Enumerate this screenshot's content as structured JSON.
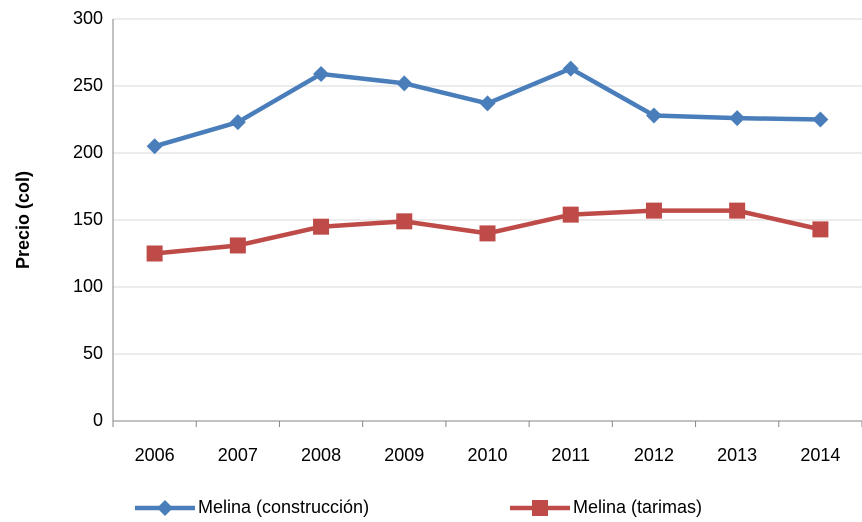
{
  "chart_data": {
    "type": "line",
    "y_label": "Precio (col)",
    "categories": [
      "2006",
      "2007",
      "2008",
      "2009",
      "2010",
      "2011",
      "2012",
      "2013",
      "2014"
    ],
    "series": [
      {
        "name": "Melina (construcción)",
        "color": "#4a7ebb",
        "marker": "diamond",
        "values": [
          205,
          223,
          259,
          252,
          237,
          263,
          228,
          226,
          225
        ]
      },
      {
        "name": "Melina (tarimas)",
        "color": "#be4b48",
        "marker": "square",
        "values": [
          125,
          131,
          145,
          149,
          140,
          154,
          157,
          157,
          143
        ]
      }
    ],
    "ylim": [
      0,
      300
    ],
    "yticks": [
      0,
      50,
      100,
      150,
      200,
      250,
      300
    ],
    "grid": true,
    "legend": "bottom"
  }
}
